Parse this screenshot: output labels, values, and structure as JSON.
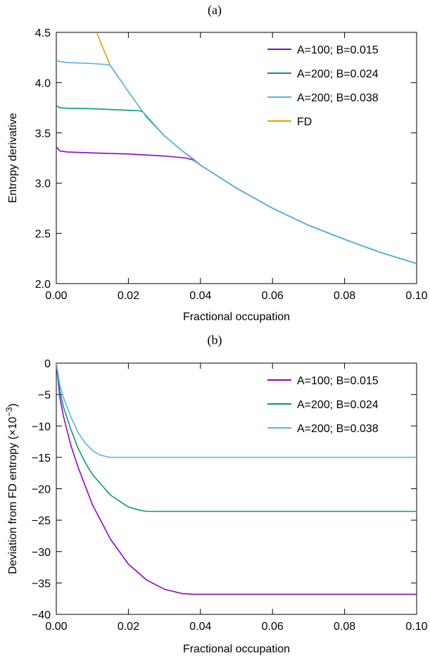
{
  "chart_data": [
    {
      "panel_label": "(a)",
      "type": "line",
      "xlabel": "Fractional occupation",
      "ylabel": "Entropy derivative",
      "xlim": [
        0,
        0.1
      ],
      "ylim": [
        2.0,
        4.5
      ],
      "xticks": [
        "0.00",
        "0.02",
        "0.04",
        "0.06",
        "0.08",
        "0.10"
      ],
      "yticks": [
        "2.0",
        "2.5",
        "3.0",
        "3.5",
        "4.0",
        "4.5"
      ],
      "grid": false,
      "legend_position": "top-right",
      "series": [
        {
          "name": "A=100; B=0.015",
          "color": "#9400d3",
          "x": [
            0,
            0.001,
            0.003,
            0.01,
            0.02,
            0.03,
            0.036,
            0.038,
            0.04,
            0.05,
            0.06,
            0.07,
            0.08,
            0.09,
            0.1
          ],
          "y": [
            3.36,
            3.32,
            3.31,
            3.3,
            3.29,
            3.27,
            3.25,
            3.23,
            3.18,
            2.95,
            2.75,
            2.58,
            2.44,
            2.31,
            2.2
          ]
        },
        {
          "name": "A=200; B=0.024",
          "color": "#009e73",
          "x": [
            0,
            0.001,
            0.003,
            0.01,
            0.02,
            0.023,
            0.024,
            0.025,
            0.03,
            0.035,
            0.038,
            0.04,
            0.05,
            0.06,
            0.07,
            0.08,
            0.09,
            0.1
          ],
          "y": [
            3.77,
            3.75,
            3.745,
            3.74,
            3.725,
            3.72,
            3.71,
            3.66,
            3.47,
            3.32,
            3.24,
            3.18,
            2.95,
            2.75,
            2.58,
            2.44,
            2.31,
            2.2
          ]
        },
        {
          "name": "A=200; B=0.038",
          "color": "#56b4e9",
          "x": [
            0,
            0.001,
            0.003,
            0.01,
            0.014,
            0.015,
            0.016,
            0.02,
            0.024,
            0.03,
            0.035,
            0.04,
            0.05,
            0.06,
            0.07,
            0.08,
            0.09,
            0.1
          ],
          "y": [
            4.22,
            4.21,
            4.2,
            4.19,
            4.18,
            4.17,
            4.12,
            3.91,
            3.71,
            3.47,
            3.32,
            3.18,
            2.95,
            2.75,
            2.58,
            2.44,
            2.31,
            2.2
          ]
        },
        {
          "name": "FD",
          "color": "#e69f00",
          "x": [
            0.0112,
            0.013,
            0.015,
            0.02,
            0.024,
            0.03,
            0.035,
            0.04,
            0.05,
            0.06,
            0.07,
            0.08,
            0.09,
            0.1
          ],
          "y": [
            4.5,
            4.34,
            4.17,
            3.91,
            3.71,
            3.47,
            3.32,
            3.18,
            2.95,
            2.75,
            2.58,
            2.44,
            2.31,
            2.2
          ]
        }
      ]
    },
    {
      "panel_label": "(b)",
      "type": "line",
      "xlabel": "Fractional occupation",
      "ylabel": "Deviation from FD entropy (×10",
      "ylabel_exponent": "−3",
      "ylabel_tail": ")",
      "xlim": [
        0,
        0.1
      ],
      "ylim": [
        -40,
        0
      ],
      "xticks": [
        "0.00",
        "0.02",
        "0.04",
        "0.06",
        "0.08",
        "0.10"
      ],
      "yticks": [
        "−40",
        "−35",
        "−30",
        "−25",
        "−20",
        "−15",
        "−10",
        "−5",
        "0"
      ],
      "grid": false,
      "legend_position": "top-right",
      "series": [
        {
          "name": "A=100; B=0.015",
          "color": "#9400d3",
          "x": [
            0,
            0.001,
            0.002,
            0.004,
            0.006,
            0.008,
            0.01,
            0.015,
            0.02,
            0.025,
            0.03,
            0.035,
            0.038,
            0.04,
            0.06,
            0.08,
            0.1
          ],
          "y": [
            0,
            -5.5,
            -8.5,
            -13,
            -16.5,
            -19.5,
            -22.5,
            -28,
            -32,
            -34.5,
            -36,
            -36.7,
            -36.8,
            -36.8,
            -36.8,
            -36.8,
            -36.8
          ]
        },
        {
          "name": "A=200; B=0.024",
          "color": "#009e73",
          "x": [
            0,
            0.001,
            0.002,
            0.004,
            0.006,
            0.008,
            0.01,
            0.015,
            0.02,
            0.023,
            0.025,
            0.04,
            0.06,
            0.08,
            0.1
          ],
          "y": [
            0,
            -4.5,
            -7,
            -10.5,
            -13.5,
            -15.8,
            -17.7,
            -21,
            -22.9,
            -23.4,
            -23.6,
            -23.6,
            -23.6,
            -23.6,
            -23.6
          ]
        },
        {
          "name": "A=200; B=0.038",
          "color": "#56b4e9",
          "x": [
            0,
            0.001,
            0.002,
            0.004,
            0.006,
            0.008,
            0.01,
            0.012,
            0.014,
            0.015,
            0.02,
            0.04,
            0.06,
            0.08,
            0.1
          ],
          "y": [
            0,
            -3.5,
            -5.5,
            -8.5,
            -11,
            -12.7,
            -13.9,
            -14.6,
            -14.9,
            -15,
            -15,
            -15,
            -15,
            -15,
            -15
          ]
        }
      ]
    }
  ]
}
